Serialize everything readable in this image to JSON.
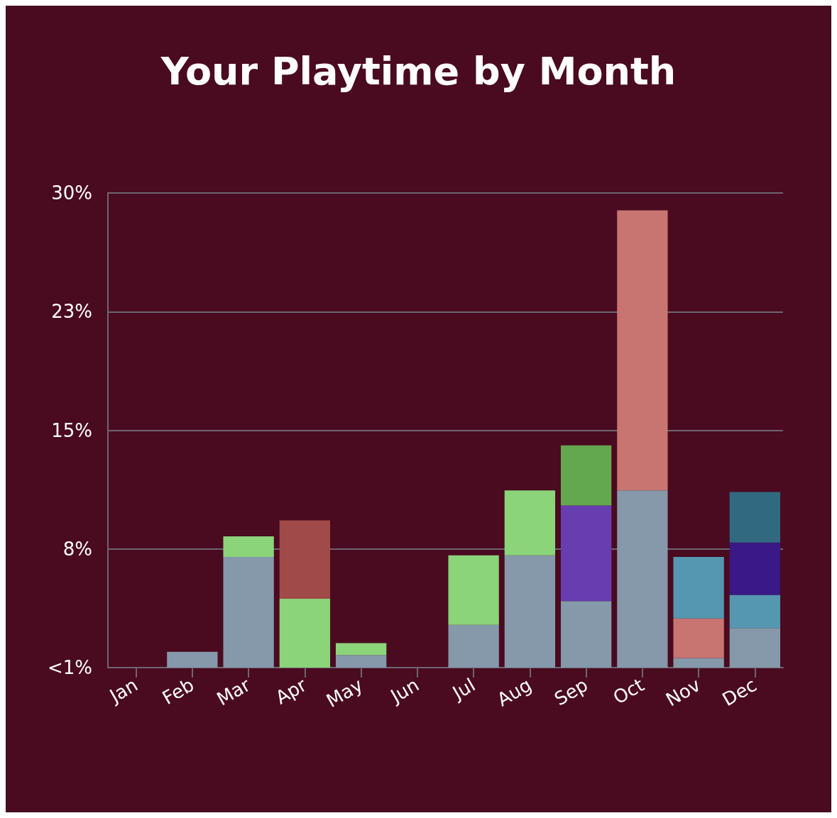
{
  "chart_data": {
    "type": "bar",
    "title": "Your Playtime by Month",
    "stacked": true,
    "grid": "y",
    "categories": [
      "Jan",
      "Feb",
      "Mar",
      "Apr",
      "May",
      "Jun",
      "Jul",
      "Aug",
      "Sep",
      "Oct",
      "Nov",
      "Dec"
    ],
    "ylim": [
      0,
      30
    ],
    "yticks": [
      {
        "value": 0,
        "label": "<1%"
      },
      {
        "value": 7.5,
        "label": "8%"
      },
      {
        "value": 15,
        "label": "15%"
      },
      {
        "value": 22.5,
        "label": "23%"
      },
      {
        "value": 30,
        "label": "30%"
      }
    ],
    "series": [
      {
        "color": "#8599aa",
        "values": [
          null,
          1.0,
          7.0,
          null,
          0.8,
          null,
          2.7,
          7.1,
          4.2,
          11.2,
          0.6,
          2.5
        ]
      },
      {
        "color": "#8bd47a",
        "values": [
          null,
          null,
          1.3,
          4.35,
          0.75,
          null,
          4.4,
          4.1,
          null,
          null,
          null,
          null
        ]
      },
      {
        "color": "#673db0",
        "values": [
          null,
          null,
          null,
          null,
          null,
          null,
          null,
          null,
          6.05,
          null,
          null,
          null
        ]
      },
      {
        "color": "#c87470",
        "values": [
          null,
          null,
          null,
          null,
          null,
          null,
          null,
          null,
          null,
          17.7,
          2.5,
          null
        ]
      },
      {
        "color": "#5597b0",
        "values": [
          null,
          null,
          null,
          null,
          null,
          null,
          null,
          null,
          null,
          null,
          3.9,
          2.1
        ]
      },
      {
        "color": "#a04b4a",
        "values": [
          null,
          null,
          null,
          4.95,
          null,
          null,
          null,
          null,
          null,
          null,
          null,
          null
        ]
      },
      {
        "color": "#63a84f",
        "values": [
          null,
          null,
          null,
          null,
          null,
          null,
          null,
          null,
          3.8,
          null,
          null,
          null
        ]
      },
      {
        "color": "#3a1885",
        "values": [
          null,
          null,
          null,
          null,
          null,
          null,
          null,
          null,
          null,
          null,
          null,
          3.3
        ]
      },
      {
        "color": "#316a80",
        "values": [
          null,
          null,
          null,
          null,
          null,
          null,
          null,
          null,
          null,
          null,
          null,
          3.2
        ]
      }
    ]
  }
}
